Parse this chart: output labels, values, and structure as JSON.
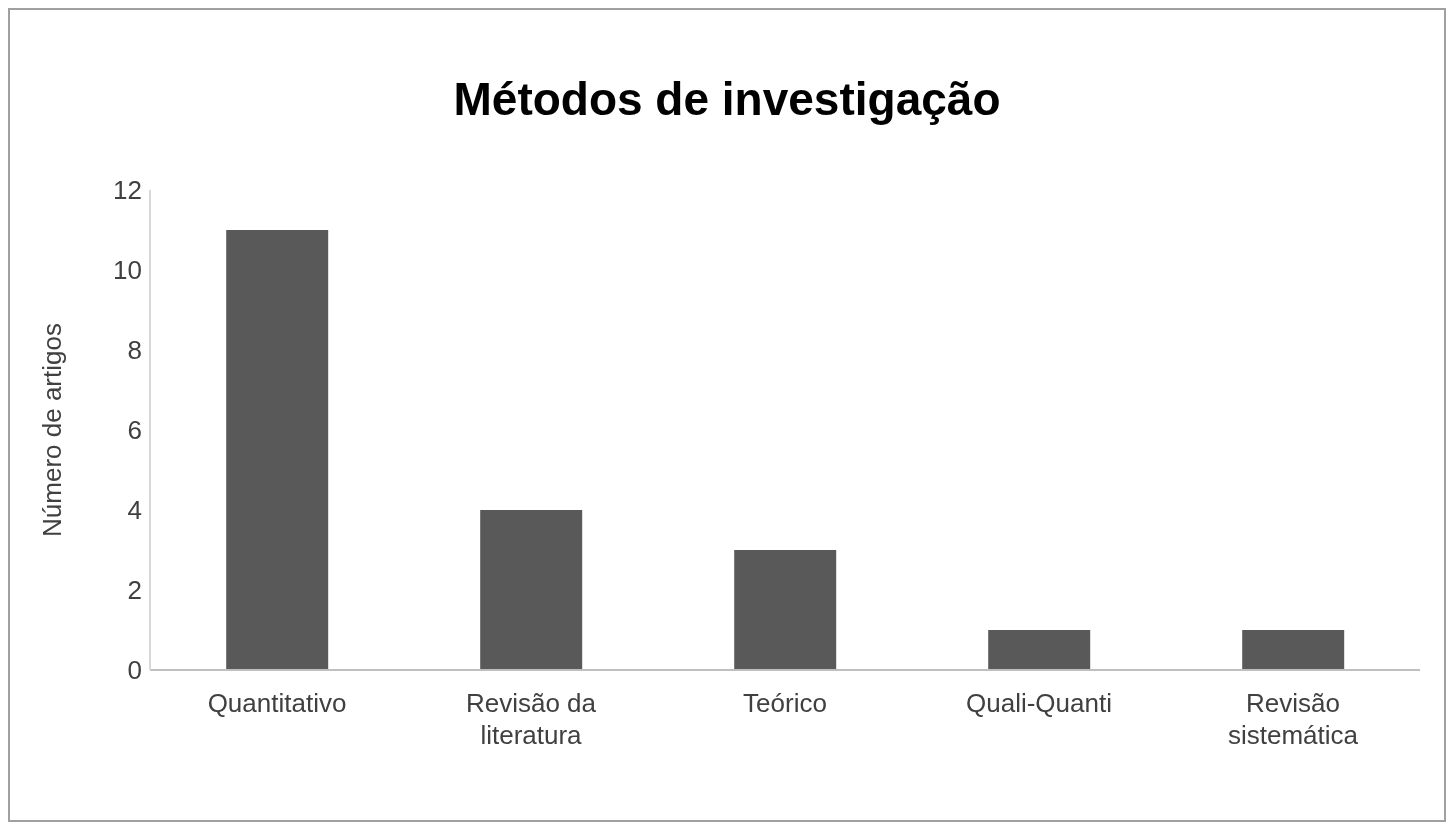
{
  "chart_data": {
    "type": "bar",
    "title": "Métodos de investigação",
    "ylabel": "Número de artigos",
    "categories": [
      "Quantitativo",
      "Revisão da literatura",
      "Teórico",
      "Quali-Quanti",
      "Revisão sistemática"
    ],
    "values": [
      11,
      4,
      3,
      1,
      1
    ],
    "color": "#595959",
    "ylim": [
      0,
      12
    ],
    "yticks": [
      0,
      2,
      4,
      6,
      8,
      10,
      12
    ],
    "grid": false,
    "legend": false
  }
}
